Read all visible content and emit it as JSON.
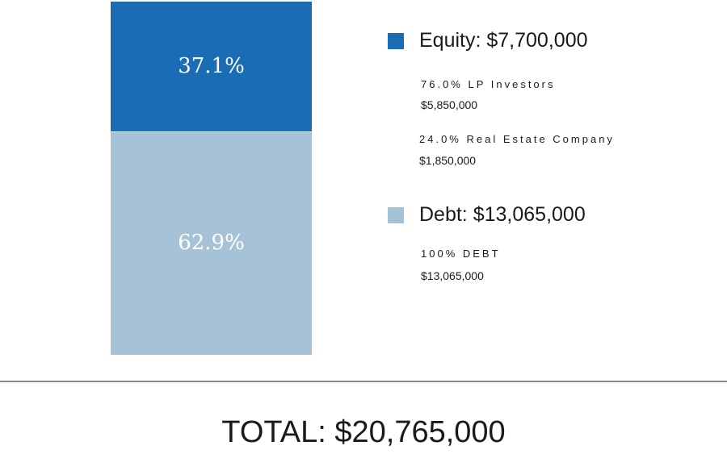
{
  "chart_data": {
    "type": "bar",
    "subtype": "100% stacked",
    "categories": [
      ""
    ],
    "series": [
      {
        "name": "Equity",
        "values": [
          37.1
        ],
        "label": "37.1%",
        "color": "#1a6db5"
      },
      {
        "name": "Debt",
        "values": [
          62.9
        ],
        "label": "62.9%",
        "color": "#a5c2d6"
      }
    ],
    "ylim": [
      0,
      100
    ],
    "legend_position": "right"
  },
  "legend": [
    {
      "title": "Equity: $7,700,000",
      "color": "#1a6db5",
      "components": [
        {
          "name": "76.0% LP Investors",
          "amount": "$5,850,000"
        },
        {
          "name": "24.0% Real Estate Company",
          "amount": "$1,850,000"
        }
      ]
    },
    {
      "title": "Debt: $13,065,000",
      "color": "#a5c2d6",
      "components": [
        {
          "name": "100% DEBT",
          "amount": "$13,065,000"
        }
      ]
    }
  ],
  "total": "TOTAL: $20,765,000"
}
